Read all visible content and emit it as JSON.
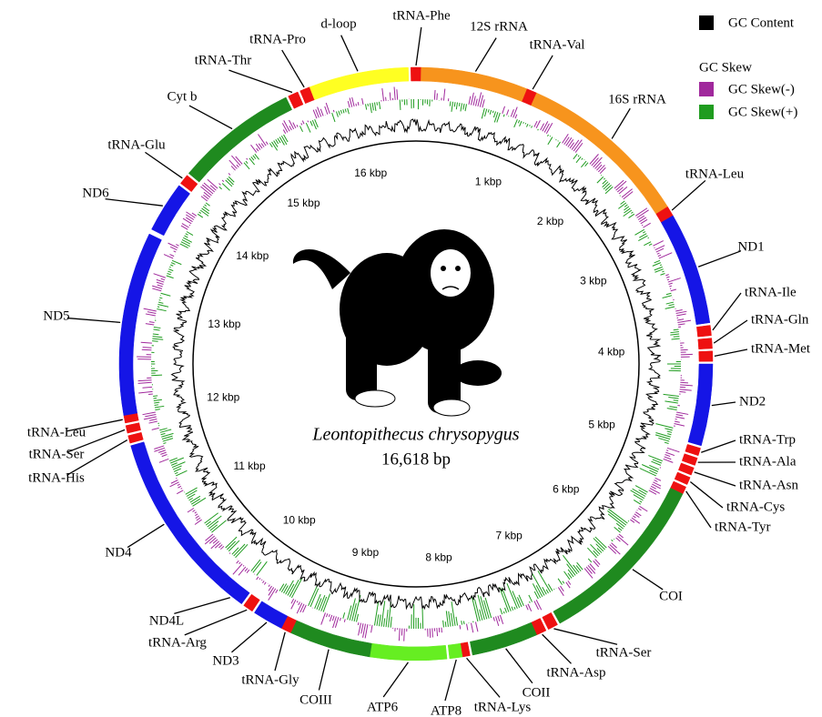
{
  "legend": {
    "gc_content": "GC Content",
    "gc_skew_title": "GC Skew",
    "skew_negative": "GC Skew(-)",
    "skew_positive": "GC Skew(+)"
  },
  "center": {
    "species": "Leontopithecus chrysopygus",
    "length": "16,618 bp"
  },
  "scale_labels": [
    "1 kbp",
    "2 kbp",
    "3 kbp",
    "4 kbp",
    "5 kbp",
    "6 kbp",
    "7 kbp",
    "8 kbp",
    "9 kbp",
    "10 kbp",
    "11 kbp",
    "12 kbp",
    "13 kbp",
    "14 kbp",
    "15 kbp",
    "16 kbp"
  ],
  "genes": [
    {
      "label": "tRNA-Phe"
    },
    {
      "label": "12S rRNA"
    },
    {
      "label": "tRNA-Val"
    },
    {
      "label": "16S rRNA"
    },
    {
      "label": "tRNA-Leu"
    },
    {
      "label": "ND1"
    },
    {
      "label": "tRNA-Ile"
    },
    {
      "label": "tRNA-Gln"
    },
    {
      "label": "tRNA-Met"
    },
    {
      "label": "ND2"
    },
    {
      "label": "tRNA-Trp"
    },
    {
      "label": "tRNA-Ala"
    },
    {
      "label": "tRNA-Asn"
    },
    {
      "label": "tRNA-Cys"
    },
    {
      "label": "tRNA-Tyr"
    },
    {
      "label": "COI"
    },
    {
      "label": "tRNA-Ser"
    },
    {
      "label": "tRNA-Asp"
    },
    {
      "label": "COII"
    },
    {
      "label": "tRNA-Lys"
    },
    {
      "label": "ATP8"
    },
    {
      "label": "ATP6"
    },
    {
      "label": "COIII"
    },
    {
      "label": "tRNA-Gly"
    },
    {
      "label": "ND3"
    },
    {
      "label": "tRNA-Arg"
    },
    {
      "label": "ND4L"
    },
    {
      "label": "ND4"
    },
    {
      "label": "tRNA-His"
    },
    {
      "label": "tRNA-Ser"
    },
    {
      "label": "tRNA-Leu"
    },
    {
      "label": "ND5"
    },
    {
      "label": "ND6"
    },
    {
      "label": "tRNA-Glu"
    },
    {
      "label": "Cyt b"
    },
    {
      "label": "tRNA-Thr"
    },
    {
      "label": "tRNA-Pro"
    },
    {
      "label": "d-loop"
    }
  ]
}
